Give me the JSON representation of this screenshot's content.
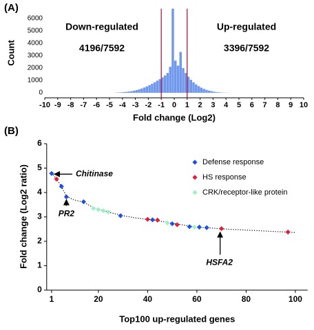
{
  "chart_data": [
    {
      "type": "histogram",
      "panel_label": "(A)",
      "xlabel": "Fold change (Log2)",
      "ylabel": "Count",
      "color": "#7098ec",
      "bins": [
        -5,
        -4.8,
        -4.6,
        -4.4,
        -4.2,
        -4,
        -3.8,
        -3.6,
        -3.4,
        -3.2,
        -3,
        -2.8,
        -2.6,
        -2.4,
        -2.2,
        -2,
        -1.8,
        -1.6,
        -1.4,
        -1.2,
        -1,
        -0.8,
        -0.6,
        -0.4,
        -0.2,
        0,
        0.2,
        0.4,
        0.6,
        0.8,
        1,
        1.2,
        1.4,
        1.6,
        1.8,
        2,
        2.2,
        2.4,
        2.6,
        2.8,
        3,
        3.2,
        3.4,
        3.6,
        3.8,
        4,
        4.2,
        4.4,
        4.6,
        4.8,
        5
      ],
      "values": [
        0,
        0,
        20,
        30,
        40,
        60,
        80,
        100,
        130,
        170,
        220,
        280,
        350,
        430,
        520,
        620,
        730,
        850,
        980,
        1100,
        1250,
        1400,
        1600,
        2100,
        6800,
        2600,
        2200,
        3300,
        2000,
        1600,
        1300,
        1050,
        850,
        680,
        540,
        420,
        320,
        240,
        180,
        130,
        90,
        60,
        40,
        25,
        15,
        10,
        5,
        0,
        0,
        0
      ],
      "xlim": [
        -10,
        10
      ],
      "ylim": [
        -400,
        6800
      ],
      "xticks": [
        -10,
        -9,
        -8,
        -7,
        -6,
        -5,
        -4,
        -3,
        -2,
        -1,
        0,
        1,
        2,
        3,
        4,
        5,
        6,
        7,
        8,
        9,
        10
      ],
      "yticks": [
        0,
        1000,
        2000,
        3000,
        4000,
        5000,
        6000
      ],
      "thresholds": [
        -1,
        1
      ],
      "threshold_color": "#b5173f",
      "annotations": [
        "Down-regulated",
        "4196/7592",
        "Up-regulated",
        "3396/7592"
      ]
    },
    {
      "type": "scatter",
      "panel_label": "(B)",
      "xlabel": "Top100 up-regulated genes",
      "ylabel": "Fold change (Log2 ratio)",
      "xlim": [
        -1,
        105
      ],
      "ylim": [
        0,
        6
      ],
      "xticks": [
        1,
        20,
        40,
        60,
        80,
        100
      ],
      "yticks": [
        0,
        1,
        2,
        3,
        4,
        5,
        6
      ],
      "legend": "upper right",
      "series": [
        {
          "line": "dotted",
          "color": "#000000",
          "x": [
            1,
            2,
            3,
            5,
            7,
            10,
            14,
            18,
            22,
            26,
            30,
            35,
            40,
            45,
            50,
            55,
            60,
            65,
            70,
            80,
            90,
            100
          ],
          "values": [
            4.8,
            4.68,
            4.55,
            4.25,
            3.84,
            3.7,
            3.6,
            3.38,
            3.26,
            3.15,
            3.05,
            2.96,
            2.9,
            2.83,
            2.74,
            2.66,
            2.58,
            2.55,
            2.51,
            2.46,
            2.41,
            2.36
          ]
        },
        {
          "name": "Defense response",
          "color": "#1f4fe0",
          "x": [
            1,
            5,
            7,
            14,
            29,
            42,
            50,
            57,
            61,
            64
          ],
          "values": [
            4.78,
            4.25,
            3.82,
            3.62,
            3.05,
            2.88,
            2.72,
            2.6,
            2.58,
            2.56
          ]
        },
        {
          "name": "HS response",
          "color": "#e0203a",
          "x": [
            3,
            40,
            44,
            52,
            70,
            97
          ],
          "values": [
            4.55,
            2.9,
            2.87,
            2.68,
            2.52,
            2.38
          ]
        },
        {
          "name": "CRK/receptor-like protein",
          "color": "#9ff0c8",
          "x": [
            18,
            20,
            22,
            24,
            48,
            59
          ],
          "values": [
            3.35,
            3.3,
            3.25,
            3.2,
            2.75,
            2.58
          ]
        }
      ],
      "annotations": [
        {
          "text": "Chitinase",
          "x": 1,
          "y": 4.78
        },
        {
          "text": "PR2",
          "x": 7,
          "y": 3.82
        },
        {
          "text": "HSFA2",
          "x": 70,
          "y": 2.52
        }
      ]
    }
  ]
}
